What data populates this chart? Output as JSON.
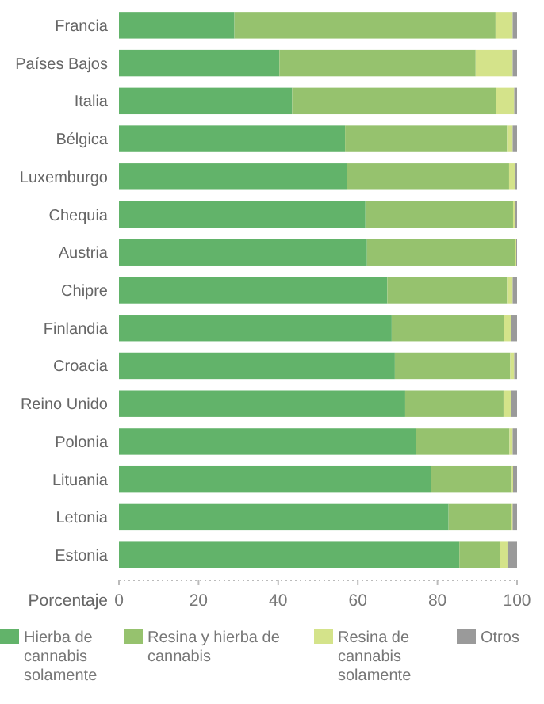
{
  "chart_data": {
    "type": "bar",
    "orientation": "horizontal",
    "stacked": true,
    "xlabel": "Porcentaje",
    "categories": [
      "Francia",
      "Países Bajos",
      "Italia",
      "Bélgica",
      "Luxemburgo",
      "Chequia",
      "Austria",
      "Chipre",
      "Finlandia",
      "Croacia",
      "Reino Unido",
      "Polonia",
      "Lituania",
      "Letonia",
      "Estonia"
    ],
    "series": [
      {
        "name": "Hierba de cannabis solamente",
        "color": "#62b36a",
        "values": [
          29,
          40.3,
          43.5,
          56.8,
          57.3,
          61.9,
          62.3,
          67.4,
          68.5,
          69.3,
          71.9,
          74.6,
          78.3,
          82.8,
          85.5
        ]
      },
      {
        "name": "Resina y hierba de cannabis",
        "color": "#96c26e",
        "values": [
          65.6,
          49.3,
          51.3,
          40.7,
          40.7,
          37.1,
          37.2,
          30.1,
          28.2,
          29,
          24.7,
          23.5,
          20.4,
          15.7,
          10.2
        ]
      },
      {
        "name": "Resina de cannabis solamente",
        "color": "#d4e38a",
        "values": [
          4.3,
          9.3,
          4.5,
          1.4,
          1.4,
          0.4,
          0.3,
          1.4,
          1.9,
          1,
          2,
          0.8,
          0.3,
          0.4,
          1.9
        ]
      },
      {
        "name": "Otros",
        "color": "#9a9a9a",
        "values": [
          1.1,
          1.1,
          0.7,
          1.1,
          0.6,
          0.6,
          0.2,
          1.1,
          1.4,
          0.7,
          1.4,
          1.1,
          1,
          1.1,
          2.4
        ]
      }
    ],
    "xlim": [
      0,
      100
    ],
    "xticks": [
      0,
      20,
      40,
      60,
      80,
      100
    ],
    "legend": "bottom"
  }
}
